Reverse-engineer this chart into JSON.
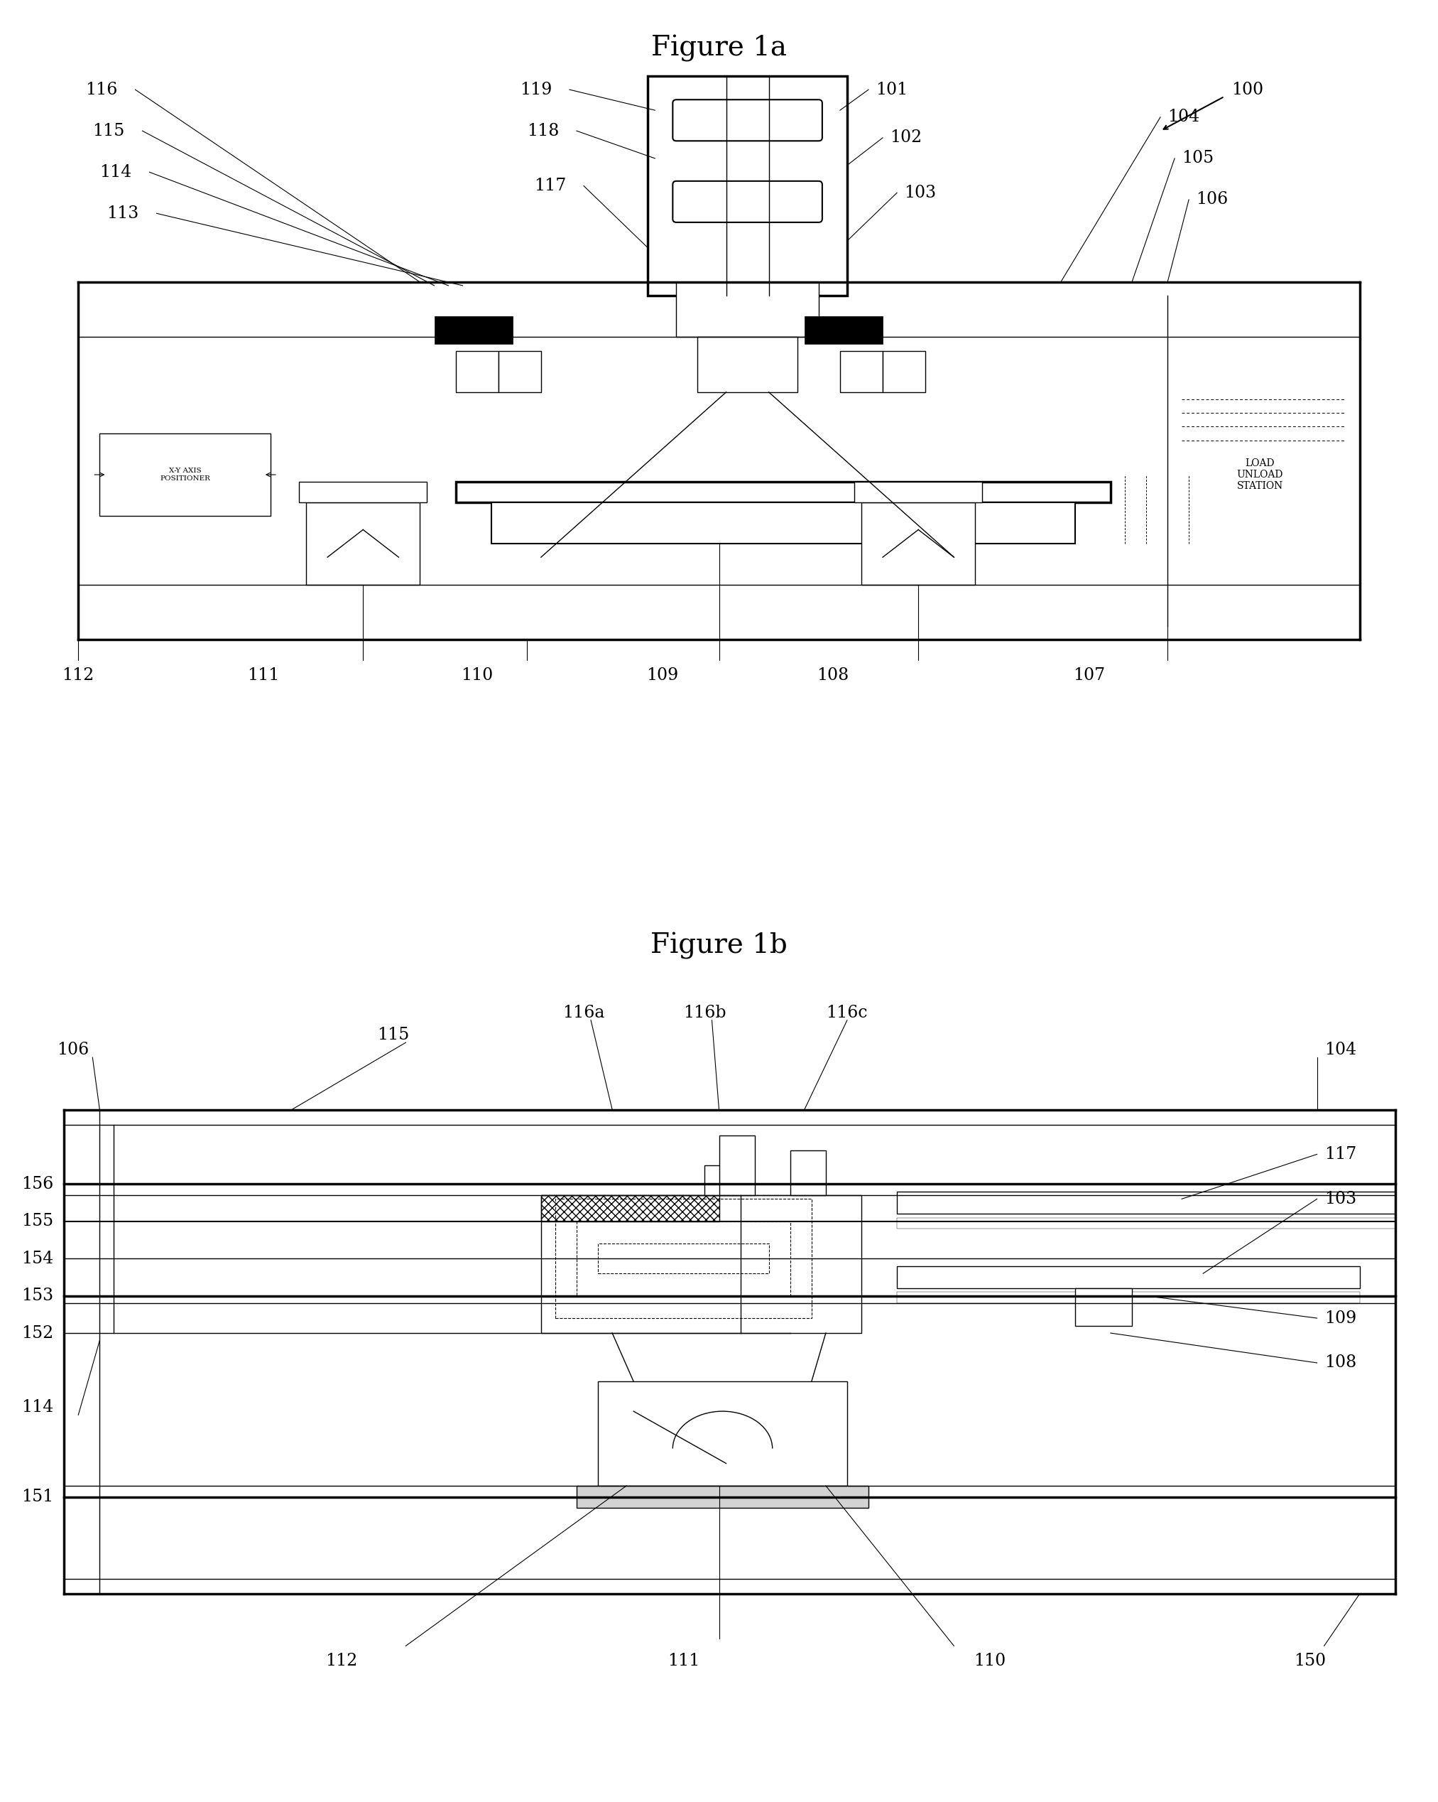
{
  "fig_title_1a": "Figure 1a",
  "fig_title_1b": "Figure 1b",
  "bg_color": "#ffffff",
  "line_color": "#000000",
  "title_fontsize": 28,
  "label_fontsize": 17
}
